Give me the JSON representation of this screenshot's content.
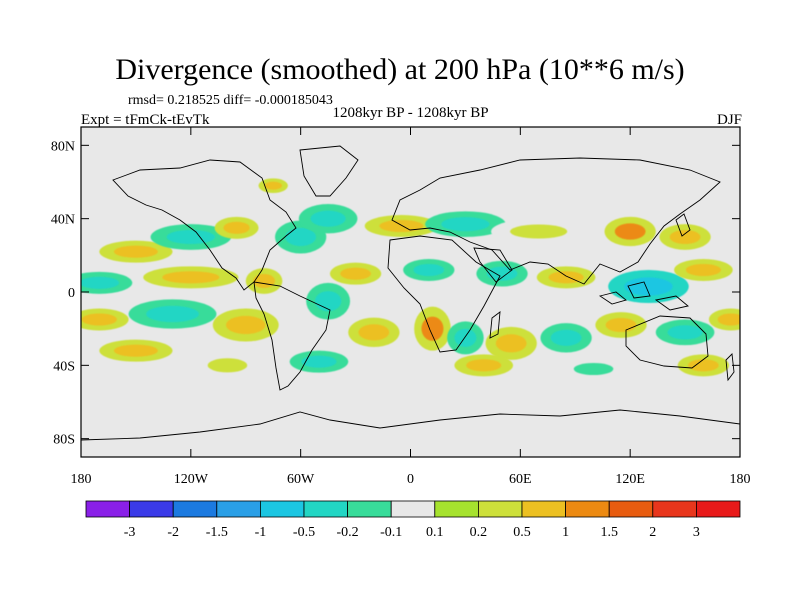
{
  "title": "Divergence (smoothed) at 200 hPa (10**6 m/s)",
  "stats": "rmsd= 0.218525 diff= -0.000185043",
  "experiment": "Expt = tFmCk-tEvTk",
  "period": "1208kyr BP - 1208kyr BP",
  "season": "DJF",
  "axes": {
    "y_ticks": [
      {
        "label": "80N",
        "lat": 80
      },
      {
        "label": "40N",
        "lat": 40
      },
      {
        "label": "0",
        "lat": 0
      },
      {
        "label": "40S",
        "lat": -40
      },
      {
        "label": "80S",
        "lat": -80
      }
    ],
    "x_ticks": [
      {
        "label": "180",
        "lon": -180
      },
      {
        "label": "120W",
        "lon": -120
      },
      {
        "label": "60W",
        "lon": -60
      },
      {
        "label": "0",
        "lon": 0
      },
      {
        "label": "60E",
        "lon": 60
      },
      {
        "label": "120E",
        "lon": 120
      },
      {
        "label": "180",
        "lon": 180
      }
    ]
  },
  "colorbar": {
    "labels": [
      "-3",
      "-2",
      "-1.5",
      "-1",
      "-0.5",
      "-0.2",
      "-0.1",
      "0.1",
      "0.2",
      "0.5",
      "1",
      "1.5",
      "2",
      "3"
    ],
    "colors": [
      "#8a20e8",
      "#3a3ae8",
      "#1c7ae0",
      "#2a9fe6",
      "#1cc6e2",
      "#22d6c4",
      "#38dc9a",
      "#e8e8e8",
      "#a6e22e",
      "#cde03a",
      "#ecc022",
      "#ec8a12",
      "#e85c10",
      "#e8361c",
      "#e81a1a"
    ]
  },
  "fields": {
    "background": "#e8e8e8",
    "coastline": "#000000"
  },
  "blobs": [
    {
      "lon": -150,
      "lat": 22,
      "rx": 20,
      "ry": 6,
      "v": 0.5
    },
    {
      "lon": -120,
      "lat": 30,
      "rx": 22,
      "ry": 7,
      "v": -0.5
    },
    {
      "lon": -95,
      "lat": 35,
      "rx": 12,
      "ry": 6,
      "v": 0.5
    },
    {
      "lon": -75,
      "lat": 58,
      "rx": 8,
      "ry": 4,
      "v": 0.5
    },
    {
      "lon": -60,
      "lat": 30,
      "rx": 14,
      "ry": 9,
      "v": -0.5
    },
    {
      "lon": -45,
      "lat": 40,
      "rx": 16,
      "ry": 8,
      "v": -0.5
    },
    {
      "lon": -5,
      "lat": 36,
      "rx": 20,
      "ry": 6,
      "v": 0.5
    },
    {
      "lon": 30,
      "lat": 37,
      "rx": 22,
      "ry": 7,
      "v": -0.5
    },
    {
      "lon": 70,
      "lat": 33,
      "rx": 26,
      "ry": 7,
      "v": 0.2
    },
    {
      "lon": 120,
      "lat": 33,
      "rx": 14,
      "ry": 8,
      "v": 1
    },
    {
      "lon": 150,
      "lat": 30,
      "rx": 14,
      "ry": 7,
      "v": 0.5
    },
    {
      "lon": -170,
      "lat": 5,
      "rx": 18,
      "ry": 6,
      "v": -0.5
    },
    {
      "lon": -120,
      "lat": 8,
      "rx": 26,
      "ry": 6,
      "v": 0.5
    },
    {
      "lon": -80,
      "lat": 6,
      "rx": 10,
      "ry": 7,
      "v": 0.5
    },
    {
      "lon": -30,
      "lat": 10,
      "rx": 14,
      "ry": 6,
      "v": 0.5
    },
    {
      "lon": 10,
      "lat": 12,
      "rx": 14,
      "ry": 6,
      "v": -0.5
    },
    {
      "lon": 50,
      "lat": 10,
      "rx": 14,
      "ry": 7,
      "v": -0.5
    },
    {
      "lon": 85,
      "lat": 8,
      "rx": 16,
      "ry": 6,
      "v": 0.5
    },
    {
      "lon": 130,
      "lat": 3,
      "rx": 22,
      "ry": 9,
      "v": -1
    },
    {
      "lon": 160,
      "lat": 12,
      "rx": 16,
      "ry": 6,
      "v": 0.5
    },
    {
      "lon": -170,
      "lat": -15,
      "rx": 16,
      "ry": 6,
      "v": 0.5
    },
    {
      "lon": -130,
      "lat": -12,
      "rx": 24,
      "ry": 8,
      "v": -0.5
    },
    {
      "lon": -90,
      "lat": -18,
      "rx": 18,
      "ry": 9,
      "v": 0.5
    },
    {
      "lon": -45,
      "lat": -5,
      "rx": 12,
      "ry": 10,
      "v": -0.5
    },
    {
      "lon": -20,
      "lat": -22,
      "rx": 14,
      "ry": 8,
      "v": 0.5
    },
    {
      "lon": 12,
      "lat": -20,
      "rx": 10,
      "ry": 12,
      "v": 1
    },
    {
      "lon": 30,
      "lat": -25,
      "rx": 10,
      "ry": 9,
      "v": -0.5
    },
    {
      "lon": 55,
      "lat": -28,
      "rx": 14,
      "ry": 9,
      "v": 0.5
    },
    {
      "lon": 85,
      "lat": -25,
      "rx": 14,
      "ry": 8,
      "v": -0.5
    },
    {
      "lon": 115,
      "lat": -18,
      "rx": 14,
      "ry": 7,
      "v": 0.5
    },
    {
      "lon": 150,
      "lat": -22,
      "rx": 16,
      "ry": 7,
      "v": -0.5
    },
    {
      "lon": 175,
      "lat": -15,
      "rx": 12,
      "ry": 6,
      "v": 0.5
    },
    {
      "lon": -150,
      "lat": -32,
      "rx": 20,
      "ry": 6,
      "v": 0.5
    },
    {
      "lon": -100,
      "lat": -40,
      "rx": 18,
      "ry": 7,
      "v": 0.2
    },
    {
      "lon": -50,
      "lat": -38,
      "rx": 16,
      "ry": 6,
      "v": -0.5
    },
    {
      "lon": 40,
      "lat": -40,
      "rx": 16,
      "ry": 6,
      "v": 0.5
    },
    {
      "lon": 100,
      "lat": -42,
      "rx": 18,
      "ry": 6,
      "v": -0.2
    },
    {
      "lon": 160,
      "lat": -40,
      "rx": 14,
      "ry": 6,
      "v": 0.5
    }
  ]
}
